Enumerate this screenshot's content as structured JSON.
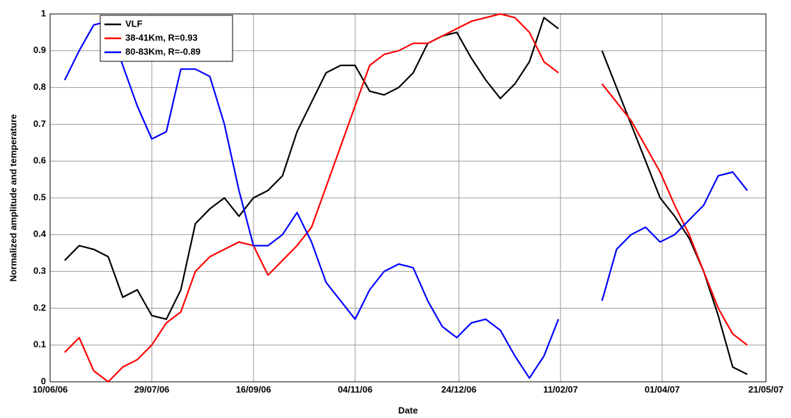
{
  "chart_data": {
    "type": "line",
    "xlabel": "Date",
    "ylabel": "Normalized amplitude and temperature",
    "x": [
      "17/06/06",
      "24/06/06",
      "01/07/06",
      "08/07/06",
      "15/07/06",
      "22/07/06",
      "29/07/06",
      "05/08/06",
      "12/08/06",
      "19/08/06",
      "26/08/06",
      "02/09/06",
      "09/09/06",
      "16/09/06",
      "23/09/06",
      "30/09/06",
      "07/10/06",
      "14/10/06",
      "21/10/06",
      "28/10/06",
      "04/11/06",
      "11/11/06",
      "18/11/06",
      "25/11/06",
      "02/12/06",
      "09/12/06",
      "16/12/06",
      "23/12/06",
      "30/12/06",
      "06/01/07",
      "13/01/07",
      "20/01/07",
      "27/01/07",
      "03/02/07",
      "10/02/07",
      "17/02/07",
      "24/02/07",
      "03/03/07",
      "10/03/07",
      "17/03/07",
      "24/03/07",
      "31/03/07",
      "07/04/07",
      "14/04/07",
      "21/04/07",
      "28/04/07",
      "05/05/07",
      "12/05/07"
    ],
    "series": [
      {
        "name": "VLF",
        "color": "#000000",
        "values": [
          0.33,
          0.37,
          0.36,
          0.34,
          0.23,
          0.25,
          0.18,
          0.17,
          0.25,
          0.43,
          0.47,
          0.5,
          0.45,
          0.5,
          0.52,
          0.56,
          0.68,
          0.76,
          0.84,
          0.86,
          0.86,
          0.79,
          0.78,
          0.8,
          0.84,
          0.92,
          0.94,
          0.95,
          0.88,
          0.82,
          0.77,
          0.81,
          0.87,
          0.99,
          0.96,
          null,
          null,
          0.9,
          0.8,
          0.7,
          0.6,
          0.5,
          0.45,
          0.39,
          0.3,
          0.18,
          0.04,
          0.02
        ]
      },
      {
        "name": "38-41Km, R=0.93",
        "color": "#ff0000",
        "values": [
          0.08,
          0.12,
          0.03,
          0.0,
          0.04,
          0.06,
          0.1,
          0.16,
          0.19,
          0.3,
          0.34,
          0.36,
          0.38,
          0.37,
          0.29,
          0.33,
          0.37,
          0.42,
          0.53,
          0.64,
          0.75,
          0.86,
          0.89,
          0.9,
          0.92,
          0.92,
          0.94,
          0.96,
          0.98,
          0.99,
          1.0,
          0.99,
          0.95,
          0.87,
          0.84,
          null,
          null,
          0.81,
          0.76,
          0.71,
          0.64,
          0.57,
          0.48,
          0.4,
          0.3,
          0.2,
          0.13,
          0.1
        ]
      },
      {
        "name": "80-83Km, R=-0.89",
        "color": "#0000ff",
        "values": [
          0.82,
          0.9,
          0.97,
          0.98,
          0.86,
          0.75,
          0.66,
          0.68,
          0.85,
          0.85,
          0.83,
          0.7,
          0.52,
          0.37,
          0.37,
          0.4,
          0.46,
          0.38,
          0.27,
          0.22,
          0.17,
          0.25,
          0.3,
          0.32,
          0.31,
          0.22,
          0.15,
          0.12,
          0.16,
          0.17,
          0.14,
          0.07,
          0.01,
          0.07,
          0.17,
          null,
          null,
          0.22,
          0.36,
          0.4,
          0.42,
          0.38,
          0.4,
          0.44,
          0.48,
          0.56,
          0.57,
          0.52
        ]
      }
    ],
    "xlim": [
      "10/06/06",
      "21/05/07"
    ],
    "xticks": [
      "10/06/06",
      "29/07/06",
      "16/09/06",
      "04/11/06",
      "24/12/06",
      "11/02/07",
      "01/04/07",
      "21/05/07"
    ],
    "ylim": [
      0,
      1
    ],
    "yticks": [
      0,
      0.1,
      0.2,
      0.3,
      0.4,
      0.5,
      0.6,
      0.7,
      0.8,
      0.9,
      1
    ],
    "grid": true,
    "legend": "upper left"
  }
}
